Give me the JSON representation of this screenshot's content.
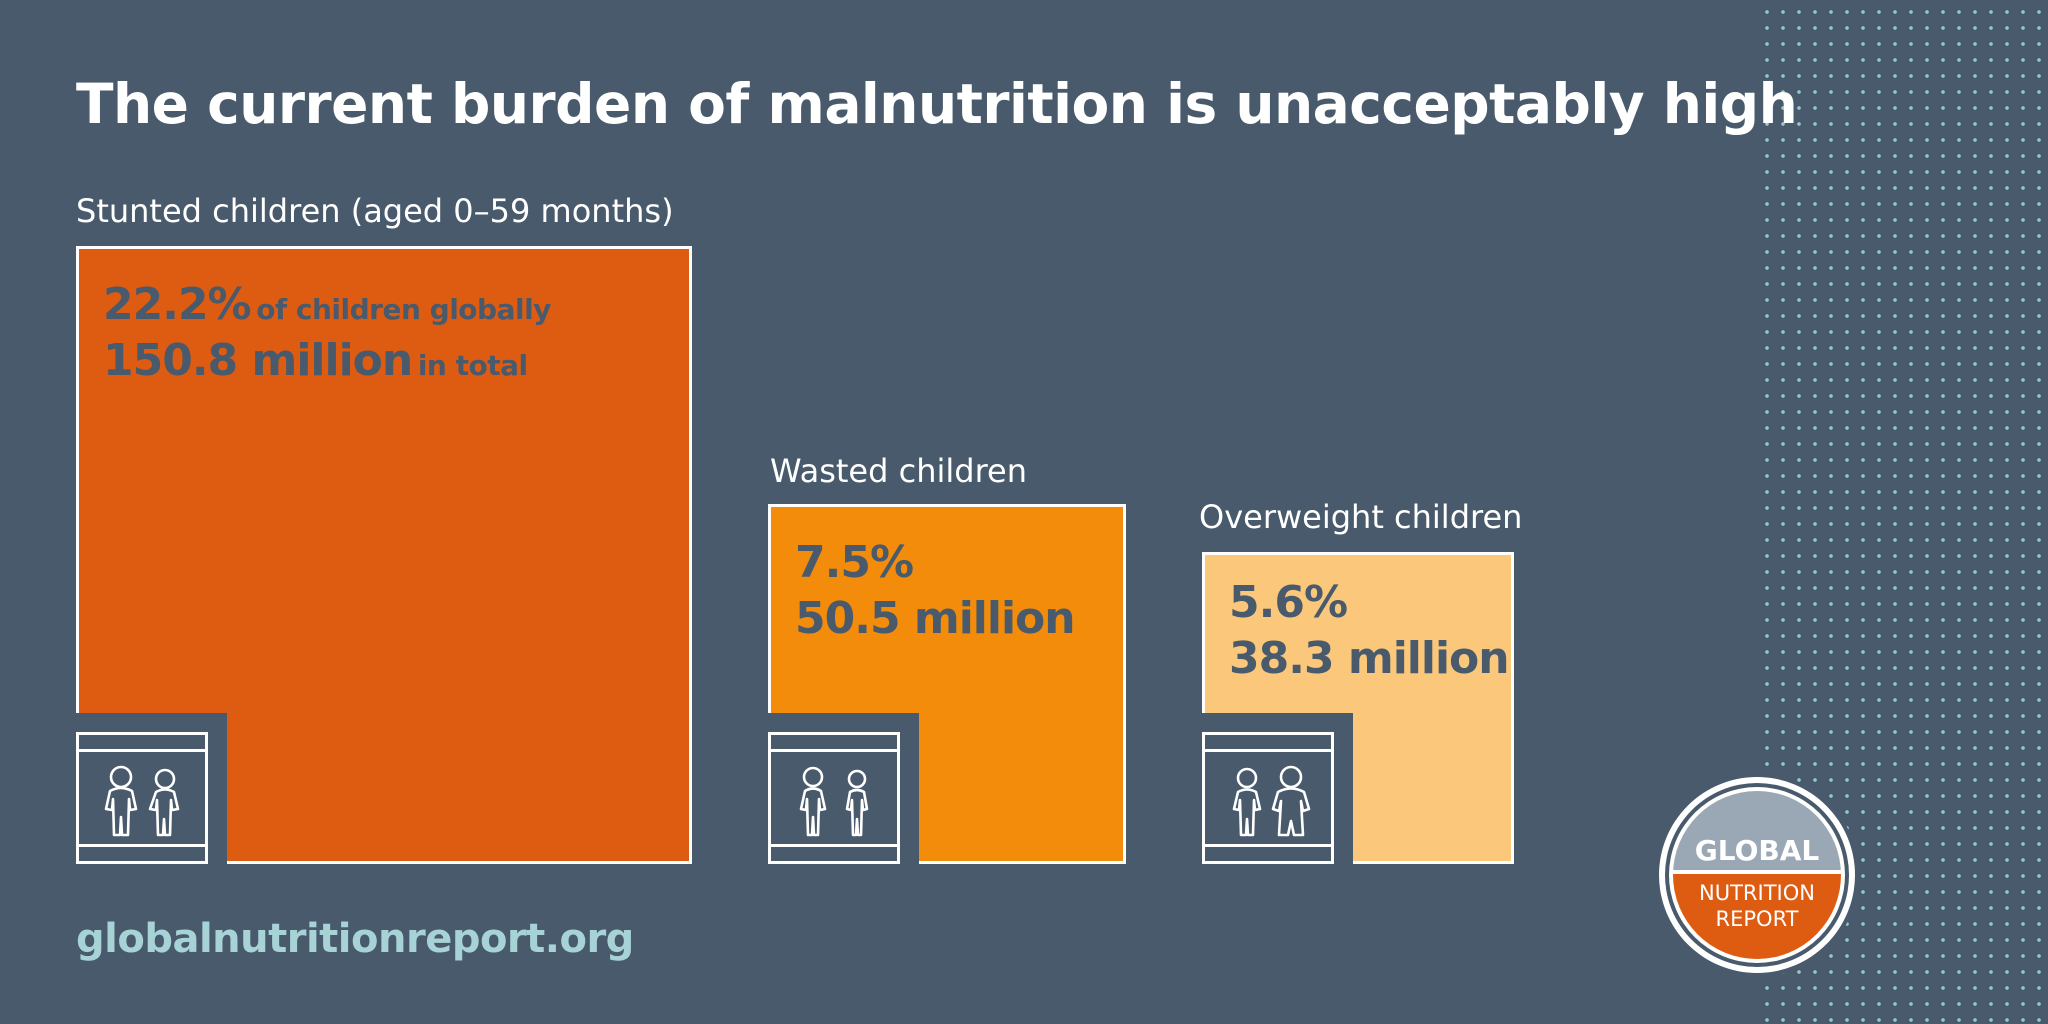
{
  "title": "The current burden of malnutrition is unacceptably high",
  "url": "globalnutritionreport.org",
  "logo": {
    "line1": "GLOBAL",
    "line2": "NUTRITION",
    "line3": "REPORT"
  },
  "colors": {
    "background": "#485a6c",
    "stunted": "#de5c11",
    "wasted": "#f28c0a",
    "overweight": "#fbc77b",
    "text_dark": "#485a6c",
    "url": "#a7d3d6"
  },
  "icon": "two-children-icon",
  "chart_data": {
    "type": "bar",
    "categories": [
      "Stunted children (aged 0–59 months)",
      "Wasted children",
      "Overweight children"
    ],
    "series": [
      {
        "name": "of children globally",
        "values": [
          22.2,
          7.5,
          5.6
        ],
        "unit": "%"
      },
      {
        "name": "in total",
        "values": [
          150.8,
          50.5,
          38.3
        ],
        "unit": "million"
      }
    ],
    "labels": {
      "stunted": {
        "pct": "22.2%",
        "pct_note": "of children globally",
        "total": "150.8 million",
        "total_note": "in total"
      },
      "wasted": {
        "pct": "7.5%",
        "total": "50.5 million"
      },
      "overweight": {
        "pct": "5.6%",
        "total": "38.3 million"
      }
    }
  }
}
